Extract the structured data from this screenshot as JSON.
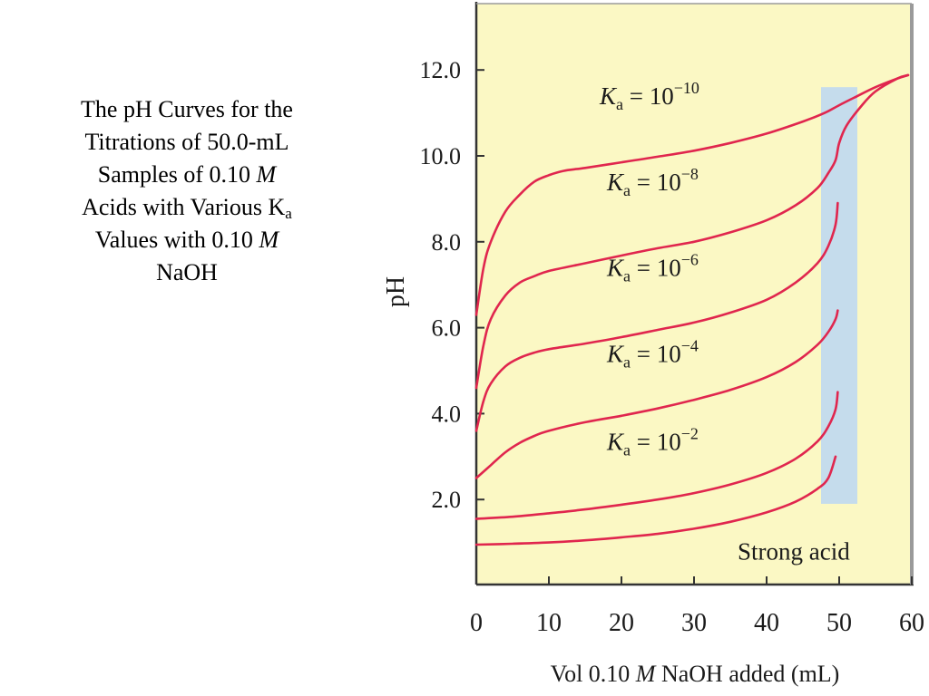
{
  "caption": {
    "line1": "The pH Curves for the",
    "line2": "Titrations of 50.0-mL",
    "line3a": "Samples of 0.10 ",
    "line3b": "M",
    "line4a": "Acids with Various K",
    "line4b": "a",
    "line5a": "Values with 0.10 ",
    "line5b": "M",
    "line6": "NaOH"
  },
  "colors": {
    "plot_background": "#fbf8c4",
    "curve": "#e0264e",
    "highlight_band": "#c5dcec",
    "axis": "#333333",
    "frame_right": "#9a9a9a"
  },
  "chart_data": {
    "type": "line",
    "xlabel": {
      "pre": "Vol 0.10 ",
      "italic": "M",
      "post": " NaOH added (mL)"
    },
    "ylabel": "pH",
    "xlim": [
      0,
      60
    ],
    "ylim": [
      0,
      13.4
    ],
    "xticks": [
      "0",
      "10",
      "20",
      "30",
      "40",
      "50",
      "60"
    ],
    "yticks": [
      "2.0",
      "4.0",
      "6.0",
      "8.0",
      "10.0",
      "12.0"
    ],
    "grid": false,
    "highlight_band": {
      "x": [
        47.5,
        52.5
      ],
      "y": [
        1.9,
        11.6
      ]
    },
    "series": [
      {
        "label_base": "K",
        "label_sub": "a",
        "label_eq": " = 10",
        "label_exp": "−10",
        "label_at": [
          17,
          11.2
        ],
        "points": [
          [
            0,
            6.3
          ],
          [
            1,
            7.4
          ],
          [
            2,
            8.0
          ],
          [
            4,
            8.7
          ],
          [
            6,
            9.1
          ],
          [
            8,
            9.4
          ],
          [
            10,
            9.55
          ],
          [
            12,
            9.65
          ],
          [
            15,
            9.72
          ],
          [
            20,
            9.85
          ],
          [
            25,
            9.98
          ],
          [
            30,
            10.12
          ],
          [
            35,
            10.3
          ],
          [
            40,
            10.52
          ],
          [
            45,
            10.8
          ],
          [
            48,
            11.0
          ],
          [
            50,
            11.18
          ],
          [
            52,
            11.35
          ],
          [
            55,
            11.6
          ],
          [
            58,
            11.8
          ],
          [
            59.5,
            11.88
          ]
        ]
      },
      {
        "label_base": "K",
        "label_sub": "a",
        "label_eq": " = 10",
        "label_exp": "−8",
        "label_at": [
          18,
          9.2
        ],
        "points": [
          [
            0,
            4.6
          ],
          [
            1,
            5.6
          ],
          [
            2,
            6.2
          ],
          [
            4,
            6.75
          ],
          [
            6,
            7.05
          ],
          [
            8,
            7.2
          ],
          [
            10,
            7.32
          ],
          [
            15,
            7.5
          ],
          [
            20,
            7.68
          ],
          [
            25,
            7.85
          ],
          [
            30,
            8.0
          ],
          [
            35,
            8.22
          ],
          [
            40,
            8.5
          ],
          [
            44,
            8.85
          ],
          [
            47,
            9.25
          ],
          [
            48.5,
            9.6
          ],
          [
            49.5,
            9.9
          ],
          [
            50,
            10.3
          ],
          [
            51,
            10.7
          ],
          [
            53,
            11.15
          ],
          [
            55,
            11.5
          ],
          [
            58,
            11.8
          ],
          [
            59.5,
            11.88
          ]
        ]
      },
      {
        "label_base": "K",
        "label_sub": "a",
        "label_eq": " = 10",
        "label_exp": "−6",
        "label_at": [
          18,
          7.2
        ],
        "points": [
          [
            0,
            3.6
          ],
          [
            1,
            4.3
          ],
          [
            2,
            4.7
          ],
          [
            4,
            5.1
          ],
          [
            6,
            5.3
          ],
          [
            8,
            5.42
          ],
          [
            10,
            5.5
          ],
          [
            15,
            5.63
          ],
          [
            20,
            5.78
          ],
          [
            25,
            5.95
          ],
          [
            30,
            6.12
          ],
          [
            35,
            6.35
          ],
          [
            40,
            6.65
          ],
          [
            44,
            7.05
          ],
          [
            47,
            7.5
          ],
          [
            48.5,
            7.9
          ],
          [
            49.5,
            8.4
          ],
          [
            49.8,
            8.9
          ]
        ]
      },
      {
        "label_base": "K",
        "label_sub": "a",
        "label_eq": " = 10",
        "label_exp": "−4",
        "label_at": [
          18,
          5.2
        ],
        "points": [
          [
            0,
            2.5
          ],
          [
            2,
            2.8
          ],
          [
            4,
            3.1
          ],
          [
            6,
            3.32
          ],
          [
            8,
            3.48
          ],
          [
            10,
            3.6
          ],
          [
            15,
            3.8
          ],
          [
            20,
            3.95
          ],
          [
            25,
            4.12
          ],
          [
            30,
            4.32
          ],
          [
            35,
            4.55
          ],
          [
            40,
            4.85
          ],
          [
            44,
            5.2
          ],
          [
            47,
            5.6
          ],
          [
            48.5,
            5.9
          ],
          [
            49.5,
            6.2
          ],
          [
            49.8,
            6.4
          ]
        ]
      },
      {
        "label_base": "K",
        "label_sub": "a",
        "label_eq": " = 10",
        "label_exp": "−2",
        "label_at": [
          18,
          3.15
        ],
        "points": [
          [
            0,
            1.55
          ],
          [
            5,
            1.6
          ],
          [
            10,
            1.68
          ],
          [
            15,
            1.77
          ],
          [
            20,
            1.88
          ],
          [
            25,
            2.0
          ],
          [
            30,
            2.15
          ],
          [
            35,
            2.35
          ],
          [
            40,
            2.62
          ],
          [
            44,
            2.95
          ],
          [
            47,
            3.35
          ],
          [
            48.5,
            3.7
          ],
          [
            49.5,
            4.1
          ],
          [
            49.8,
            4.5
          ]
        ]
      },
      {
        "label": "Strong acid",
        "label_at": [
          36,
          0.6
        ],
        "points": [
          [
            0,
            0.95
          ],
          [
            5,
            0.97
          ],
          [
            10,
            1.0
          ],
          [
            15,
            1.05
          ],
          [
            20,
            1.12
          ],
          [
            25,
            1.2
          ],
          [
            30,
            1.32
          ],
          [
            35,
            1.48
          ],
          [
            40,
            1.7
          ],
          [
            44,
            1.95
          ],
          [
            47,
            2.25
          ],
          [
            48.5,
            2.5
          ],
          [
            49.5,
            3.0
          ]
        ]
      }
    ]
  }
}
